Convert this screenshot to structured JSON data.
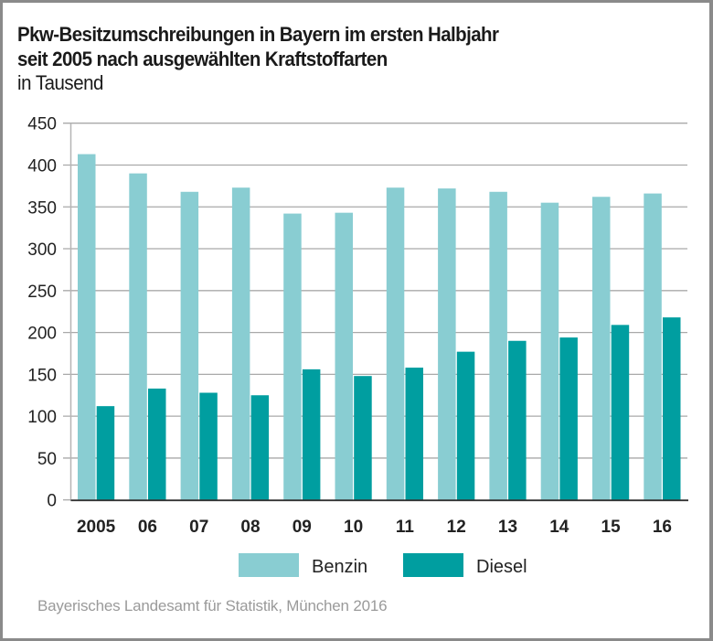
{
  "header": {
    "title_line1": "Pkw-Besitzumschreibungen in Bayern im ersten Halbjahr",
    "title_line2": "seit 2005 nach ausgewählten Kraftstoffarten",
    "unit": "in Tausend"
  },
  "source": "Bayerisches Landesamt für Statistik, München 2016",
  "colors": {
    "benzin": "#89cdd2",
    "diesel": "#009ea0",
    "grid": "#a9a9a9",
    "axis": "#333333",
    "frame": "#8a8a8a"
  },
  "chart_data": {
    "type": "bar",
    "title": "Pkw-Besitzumschreibungen in Bayern im ersten Halbjahr seit 2005 nach ausgewählten Kraftstoffarten",
    "subtitle": "in Tausend",
    "xlabel": "",
    "ylabel": "",
    "categories": [
      "2005",
      "06",
      "07",
      "08",
      "09",
      "10",
      "11",
      "12",
      "13",
      "14",
      "15",
      "16"
    ],
    "series": [
      {
        "name": "Benzin",
        "values": [
          413,
          390,
          368,
          373,
          342,
          343,
          373,
          372,
          368,
          355,
          362,
          366
        ]
      },
      {
        "name": "Diesel",
        "values": [
          112,
          133,
          128,
          125,
          156,
          148,
          158,
          177,
          190,
          194,
          209,
          218
        ]
      }
    ],
    "ylim": [
      0,
      450
    ],
    "yticks": [
      0,
      50,
      100,
      150,
      200,
      250,
      300,
      350,
      400,
      450
    ],
    "grid": true,
    "legend": {
      "position": "bottom-center",
      "entries": [
        "Benzin",
        "Diesel"
      ]
    }
  }
}
